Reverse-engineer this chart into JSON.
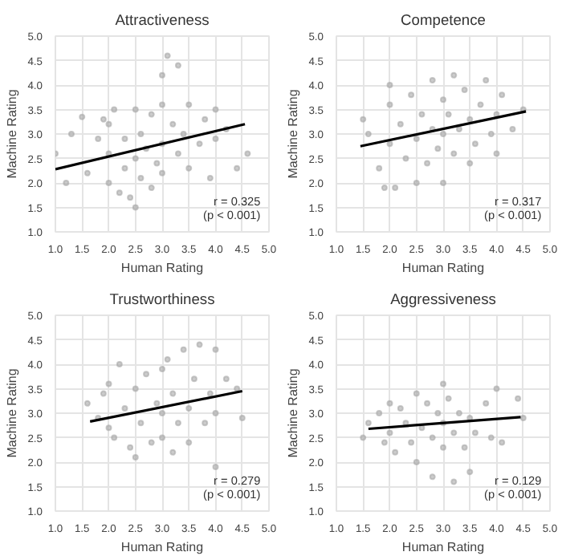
{
  "chart_data": [
    {
      "type": "scatter",
      "title": "Attractiveness",
      "xlabel": "Human Rating",
      "ylabel": "Machine Rating",
      "xlim": [
        1.0,
        5.0
      ],
      "ylim": [
        1.0,
        5.0
      ],
      "xticks": [
        {
          "value": 1,
          "label": "1.0"
        },
        1.5,
        {
          "value": 2,
          "label": "2.0"
        },
        2.5,
        {
          "value": 3,
          "label": "3.0"
        },
        3.5,
        {
          "value": 4,
          "label": "4.0"
        },
        4.5,
        {
          "value": 5,
          "label": "5.0"
        }
      ],
      "yticks": [
        {
          "value": 1,
          "label": "1.0"
        },
        1.5,
        {
          "value": 2,
          "label": "2.0"
        },
        2.5,
        {
          "value": 3,
          "label": "3.0"
        },
        3.5,
        {
          "value": 4,
          "label": "4.0"
        },
        4.5,
        {
          "value": 5,
          "label": "5.0"
        }
      ],
      "grid": true,
      "marker": "circle",
      "annotations": [
        "r = 0.325",
        "(p < 0.001)"
      ],
      "series": [
        {
          "type": "scatter",
          "color": "#a8a8a8",
          "x": [
            1.0,
            1.2,
            1.3,
            1.5,
            1.6,
            1.8,
            1.9,
            2.0,
            2.0,
            2.0,
            2.1,
            2.2,
            2.3,
            2.3,
            2.4,
            2.5,
            2.5,
            2.5,
            2.6,
            2.6,
            2.7,
            2.8,
            2.8,
            2.9,
            3.0,
            3.0,
            3.0,
            3.0,
            3.1,
            3.2,
            3.3,
            3.3,
            3.4,
            3.5,
            3.5,
            3.7,
            3.8,
            3.9,
            4.0,
            4.0,
            4.2,
            4.4,
            4.6
          ],
          "values": [
            2.6,
            2.0,
            3.0,
            3.35,
            2.2,
            2.9,
            3.3,
            3.2,
            2.0,
            2.6,
            3.5,
            1.8,
            2.3,
            2.9,
            1.7,
            1.5,
            2.5,
            3.5,
            2.1,
            3.0,
            2.7,
            1.9,
            3.4,
            2.4,
            3.6,
            2.8,
            2.2,
            4.2,
            4.6,
            3.2,
            2.6,
            4.4,
            3.0,
            2.3,
            3.6,
            2.8,
            3.3,
            2.1,
            2.9,
            3.5,
            3.1,
            2.3,
            2.6
          ]
        },
        {
          "type": "line",
          "marker": "none",
          "color": "#000000",
          "x": [
            1.0,
            4.55
          ],
          "values": [
            2.28,
            3.2
          ]
        }
      ]
    },
    {
      "type": "scatter",
      "title": "Competence",
      "xlabel": "Human Rating",
      "ylabel": "Machine Rating",
      "xlim": [
        1.0,
        5.0
      ],
      "ylim": [
        1.0,
        5.0
      ],
      "xticks": [
        {
          "value": 1,
          "label": "1.0"
        },
        1.5,
        {
          "value": 2,
          "label": "2.0"
        },
        2.5,
        {
          "value": 3,
          "label": "3.0"
        },
        3.5,
        {
          "value": 4,
          "label": "4.0"
        },
        4.5,
        {
          "value": 5,
          "label": "5.0"
        }
      ],
      "yticks": [
        {
          "value": 1,
          "label": "1.0"
        },
        1.5,
        {
          "value": 2,
          "label": "2.0"
        },
        2.5,
        {
          "value": 3,
          "label": "3.0"
        },
        3.5,
        {
          "value": 4,
          "label": "4.0"
        },
        4.5,
        {
          "value": 5,
          "label": "5.0"
        }
      ],
      "grid": true,
      "marker": "circle",
      "annotations": [
        "r = 0.317",
        "(p < 0.001)"
      ],
      "series": [
        {
          "type": "scatter",
          "color": "#a8a8a8",
          "x": [
            1.5,
            1.6,
            1.8,
            1.9,
            2.0,
            2.0,
            2.0,
            2.1,
            2.2,
            2.3,
            2.4,
            2.5,
            2.5,
            2.6,
            2.7,
            2.8,
            2.8,
            2.9,
            3.0,
            3.0,
            3.0,
            3.1,
            3.2,
            3.2,
            3.3,
            3.4,
            3.5,
            3.5,
            3.6,
            3.7,
            3.8,
            3.9,
            4.0,
            4.0,
            4.1,
            4.3,
            4.5
          ],
          "values": [
            3.3,
            3.0,
            2.3,
            1.9,
            4.0,
            2.8,
            3.6,
            1.9,
            3.2,
            2.5,
            3.8,
            2.0,
            2.9,
            3.4,
            2.4,
            3.1,
            4.1,
            2.7,
            3.7,
            2.0,
            3.0,
            3.4,
            2.6,
            4.2,
            3.1,
            3.9,
            2.4,
            3.3,
            2.8,
            3.6,
            4.1,
            3.0,
            3.4,
            2.6,
            3.8,
            3.1,
            3.5
          ]
        },
        {
          "type": "line",
          "marker": "none",
          "color": "#000000",
          "x": [
            1.45,
            4.55
          ],
          "values": [
            2.75,
            3.46
          ]
        }
      ]
    },
    {
      "type": "scatter",
      "title": "Trustworthiness",
      "xlabel": "Human Rating",
      "ylabel": "Machine Rating",
      "xlim": [
        1.0,
        5.0
      ],
      "ylim": [
        1.0,
        5.0
      ],
      "xticks": [
        {
          "value": 1,
          "label": "1.0"
        },
        1.5,
        {
          "value": 2,
          "label": "2.0"
        },
        2.5,
        {
          "value": 3,
          "label": "3.0"
        },
        3.5,
        {
          "value": 4,
          "label": "4.0"
        },
        4.5,
        {
          "value": 5,
          "label": "5.0"
        }
      ],
      "yticks": [
        {
          "value": 1,
          "label": "1.0"
        },
        1.5,
        {
          "value": 2,
          "label": "2.0"
        },
        2.5,
        {
          "value": 3,
          "label": "3.0"
        },
        3.5,
        {
          "value": 4,
          "label": "4.0"
        },
        4.5,
        {
          "value": 5,
          "label": "5.0"
        }
      ],
      "grid": true,
      "marker": "circle",
      "annotations": [
        "r = 0.279",
        "(p < 0.001)"
      ],
      "series": [
        {
          "type": "scatter",
          "color": "#a8a8a8",
          "x": [
            1.6,
            1.8,
            1.9,
            2.0,
            2.0,
            2.1,
            2.2,
            2.3,
            2.4,
            2.5,
            2.5,
            2.6,
            2.7,
            2.8,
            2.9,
            3.0,
            3.0,
            3.0,
            3.1,
            3.2,
            3.2,
            3.3,
            3.4,
            3.5,
            3.5,
            3.6,
            3.7,
            3.8,
            3.9,
            4.0,
            4.0,
            4.0,
            4.2,
            4.4,
            4.5
          ],
          "values": [
            3.2,
            2.9,
            3.4,
            3.6,
            2.7,
            2.5,
            4.0,
            3.1,
            2.3,
            3.5,
            2.1,
            2.8,
            3.8,
            2.4,
            3.2,
            2.5,
            3.9,
            3.0,
            4.1,
            2.2,
            3.4,
            2.8,
            4.3,
            3.1,
            2.4,
            3.7,
            4.4,
            2.8,
            3.4,
            1.9,
            4.3,
            3.0,
            3.7,
            3.5,
            2.9
          ]
        },
        {
          "type": "line",
          "marker": "none",
          "color": "#000000",
          "x": [
            1.65,
            4.5
          ],
          "values": [
            2.83,
            3.45
          ]
        }
      ]
    },
    {
      "type": "scatter",
      "title": "Aggressiveness",
      "xlabel": "Human Rating",
      "ylabel": "Machine Rating",
      "xlim": [
        1.0,
        5.0
      ],
      "ylim": [
        1.0,
        5.0
      ],
      "xticks": [
        {
          "value": 1,
          "label": "1.0"
        },
        1.5,
        {
          "value": 2,
          "label": "2.0"
        },
        2.5,
        {
          "value": 3,
          "label": "3.0"
        },
        3.5,
        {
          "value": 4,
          "label": "4.0"
        },
        4.5,
        {
          "value": 5,
          "label": "5.0"
        }
      ],
      "yticks": [
        {
          "value": 1,
          "label": "1.0"
        },
        1.5,
        {
          "value": 2,
          "label": "2.0"
        },
        2.5,
        {
          "value": 3,
          "label": "3.0"
        },
        3.5,
        {
          "value": 4,
          "label": "4.0"
        },
        4.5,
        {
          "value": 5,
          "label": "5.0"
        }
      ],
      "grid": true,
      "marker": "circle",
      "annotations": [
        "r = 0.129",
        "(p < 0.001)"
      ],
      "series": [
        {
          "type": "scatter",
          "color": "#a8a8a8",
          "x": [
            1.5,
            1.6,
            1.8,
            1.9,
            2.0,
            2.0,
            2.1,
            2.2,
            2.3,
            2.4,
            2.5,
            2.5,
            2.6,
            2.7,
            2.8,
            2.8,
            2.9,
            3.0,
            3.0,
            3.0,
            3.1,
            3.2,
            3.2,
            3.3,
            3.4,
            3.5,
            3.5,
            3.6,
            3.8,
            3.9,
            4.0,
            4.1,
            4.4,
            4.5
          ],
          "values": [
            2.5,
            2.8,
            3.0,
            2.4,
            3.2,
            2.6,
            2.2,
            3.1,
            2.8,
            2.4,
            3.4,
            2.0,
            2.7,
            3.2,
            1.7,
            2.5,
            3.0,
            3.6,
            2.3,
            2.8,
            3.3,
            1.6,
            2.6,
            3.0,
            2.3,
            1.8,
            2.9,
            2.6,
            3.2,
            2.5,
            3.5,
            2.4,
            3.3,
            2.9
          ]
        },
        {
          "type": "line",
          "marker": "none",
          "color": "#000000",
          "x": [
            1.6,
            4.45
          ],
          "values": [
            2.68,
            2.92
          ]
        }
      ]
    }
  ]
}
